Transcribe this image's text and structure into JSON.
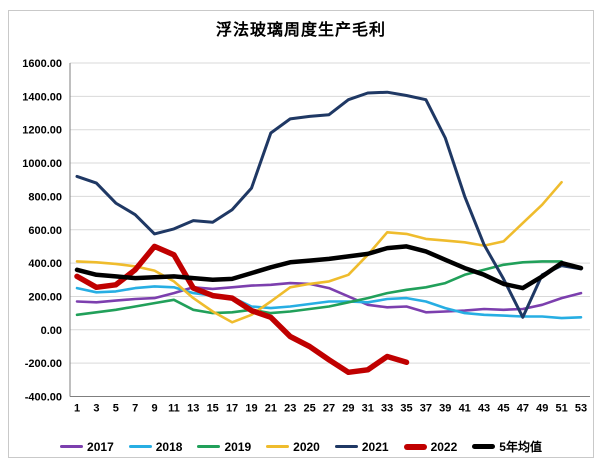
{
  "chart_data": {
    "type": "line",
    "title": "浮法玻璃周度生产毛利",
    "legend_position": "bottom",
    "grid": "horizontal",
    "xlim": [
      1,
      53
    ],
    "ylim": [
      -400,
      1600
    ],
    "x_ticks": [
      1,
      3,
      5,
      7,
      9,
      11,
      13,
      15,
      17,
      19,
      21,
      23,
      25,
      27,
      29,
      31,
      33,
      35,
      37,
      39,
      41,
      43,
      45,
      47,
      49,
      51,
      53
    ],
    "y_ticks": [
      1600,
      1400,
      1200,
      1000,
      800,
      600,
      400,
      200,
      0,
      -200,
      -400
    ],
    "y_tick_labels": [
      "1600.00",
      "1400.00",
      "1200.00",
      "1000.00",
      "800.00",
      "600.00",
      "400.00",
      "200.00",
      "0.00",
      "-200.00",
      "-400.00"
    ],
    "x": [
      1,
      3,
      5,
      7,
      9,
      11,
      13,
      15,
      17,
      19,
      21,
      23,
      25,
      27,
      29,
      31,
      33,
      35,
      37,
      39,
      41,
      43,
      45,
      47,
      49,
      51,
      53
    ],
    "series": [
      {
        "name": "2017",
        "color": "#7C3FAE",
        "width": 2.6,
        "values": [
          170,
          165,
          175,
          185,
          190,
          220,
          255,
          245,
          255,
          265,
          270,
          280,
          275,
          250,
          200,
          150,
          135,
          140,
          105,
          110,
          115,
          125,
          120,
          125,
          150,
          190,
          220
        ]
      },
      {
        "name": "2018",
        "color": "#27AEE3",
        "width": 2.6,
        "values": [
          250,
          225,
          230,
          250,
          260,
          255,
          220,
          205,
          195,
          140,
          130,
          140,
          155,
          170,
          170,
          165,
          185,
          190,
          170,
          130,
          100,
          90,
          85,
          80,
          80,
          70,
          75
        ]
      },
      {
        "name": "2019",
        "color": "#21A05A",
        "width": 2.6,
        "values": [
          90,
          105,
          120,
          140,
          160,
          180,
          120,
          100,
          105,
          120,
          100,
          110,
          125,
          140,
          165,
          190,
          220,
          240,
          255,
          280,
          330,
          360,
          390,
          405,
          410,
          410,
          null
        ]
      },
      {
        "name": "2020",
        "color": "#EFBC2D",
        "width": 2.6,
        "values": [
          410,
          405,
          395,
          380,
          355,
          290,
          190,
          110,
          45,
          90,
          170,
          255,
          275,
          290,
          330,
          450,
          585,
          575,
          545,
          535,
          525,
          505,
          530,
          640,
          750,
          885,
          null
        ]
      },
      {
        "name": "2021",
        "color": "#1F3864",
        "width": 3,
        "values": [
          920,
          880,
          760,
          690,
          575,
          605,
          655,
          645,
          720,
          850,
          1180,
          1265,
          1280,
          1290,
          1380,
          1420,
          1425,
          1405,
          1380,
          1150,
          800,
          510,
          305,
          75,
          330,
          385,
          365
        ]
      },
      {
        "name": "2022",
        "color": "#C00000",
        "width": 5.5,
        "values": [
          320,
          255,
          270,
          360,
          500,
          450,
          250,
          205,
          190,
          115,
          75,
          -40,
          -100,
          -180,
          -255,
          -240,
          -160,
          -195,
          null,
          null,
          null,
          null,
          null,
          null,
          null,
          null,
          null
        ]
      },
      {
        "name": "5年均值",
        "color": "#000000",
        "width": 4.5,
        "values": [
          360,
          330,
          320,
          310,
          315,
          320,
          310,
          300,
          305,
          340,
          375,
          405,
          415,
          425,
          440,
          455,
          490,
          500,
          470,
          420,
          370,
          330,
          275,
          250,
          320,
          400,
          370
        ]
      }
    ],
    "colors": {
      "gridline": "#d9d9d9",
      "axis": "#7f7f7f",
      "background": "#ffffff"
    }
  }
}
